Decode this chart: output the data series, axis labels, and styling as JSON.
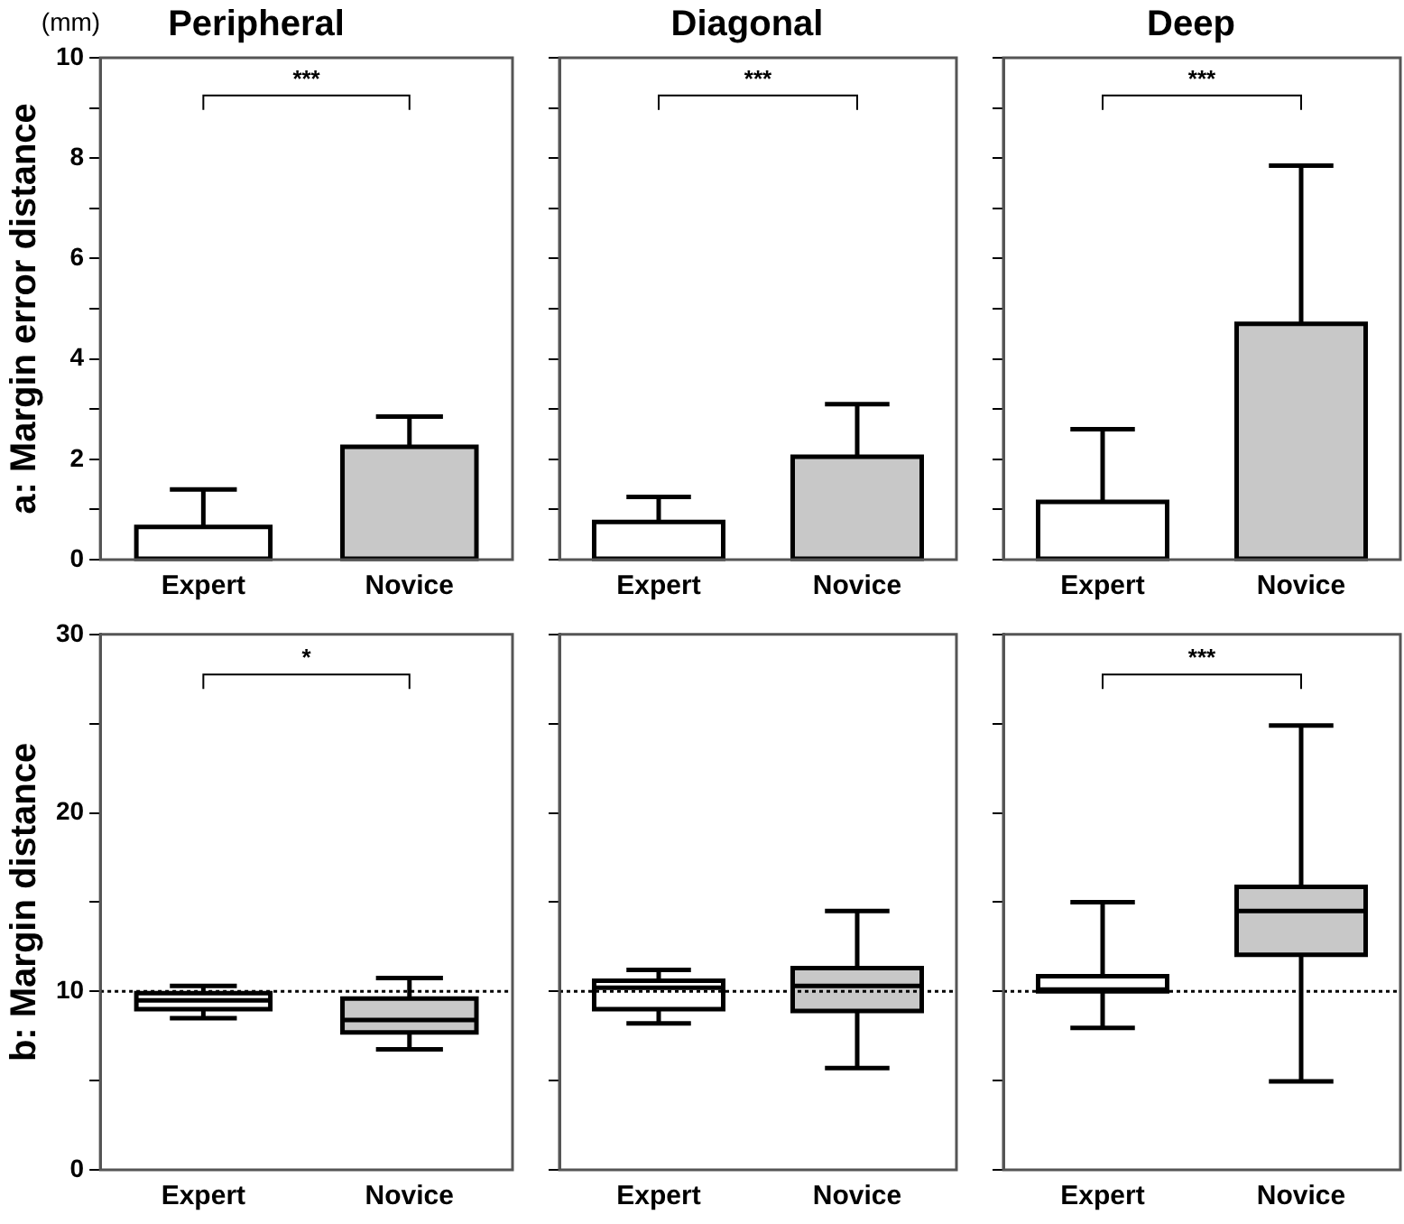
{
  "chart_data": [
    {
      "type": "bar",
      "title": "Peripheral",
      "ylabel": "a: Margin error distance",
      "annotations": [
        "(mm)",
        "***"
      ],
      "categories": [
        "Expert",
        "Novice"
      ],
      "values": [
        0.65,
        2.25
      ],
      "errors": [
        [
          0.65,
          1.4
        ],
        [
          2.25,
          2.85
        ]
      ],
      "colors": [
        "#ffffff",
        "#c8c8c8"
      ],
      "ylim": [
        0,
        10
      ],
      "yticks": [
        0,
        {
          "value": 1,
          "label": null
        },
        2,
        {
          "value": 3,
          "label": null
        },
        4,
        {
          "value": 5,
          "label": null
        },
        6,
        {
          "value": 7,
          "label": null
        },
        8,
        {
          "value": 9,
          "label": null
        },
        10
      ],
      "grid": false
    },
    {
      "type": "bar",
      "title": "Diagonal",
      "annotations": [
        "***"
      ],
      "categories": [
        "Expert",
        "Novice"
      ],
      "values": [
        0.75,
        2.05
      ],
      "errors": [
        [
          0.75,
          1.25
        ],
        [
          2.05,
          3.1
        ]
      ],
      "colors": [
        "#ffffff",
        "#c8c8c8"
      ],
      "ylim": [
        0,
        10
      ],
      "yticks": [
        0,
        {
          "value": 1,
          "label": null
        },
        2,
        {
          "value": 3,
          "label": null
        },
        4,
        {
          "value": 5,
          "label": null
        },
        6,
        {
          "value": 7,
          "label": null
        },
        8,
        {
          "value": 9,
          "label": null
        },
        10
      ],
      "tick_labels": "x",
      "grid": false
    },
    {
      "type": "bar",
      "title": "Deep",
      "annotations": [
        "***"
      ],
      "categories": [
        "Expert",
        "Novice"
      ],
      "values": [
        1.15,
        4.7
      ],
      "errors": [
        [
          1.15,
          2.6
        ],
        [
          4.7,
          7.85
        ]
      ],
      "colors": [
        "#ffffff",
        "#c8c8c8"
      ],
      "ylim": [
        0,
        10
      ],
      "yticks": [
        0,
        {
          "value": 1,
          "label": null
        },
        2,
        {
          "value": 3,
          "label": null
        },
        4,
        {
          "value": 5,
          "label": null
        },
        6,
        {
          "value": 7,
          "label": null
        },
        8,
        {
          "value": 9,
          "label": null
        },
        10
      ],
      "tick_labels": "x",
      "grid": false
    },
    {
      "type": "box",
      "ylabel": "b: Margin distance",
      "annotations": [
        "*"
      ],
      "categories": [
        "Expert",
        "Novice"
      ],
      "boxes": [
        {
          "low": 8.5,
          "q1": 9.0,
          "median": 9.5,
          "q3": 9.9,
          "high": 10.3
        },
        {
          "low": 6.75,
          "q1": 7.7,
          "median": 8.4,
          "q3": 9.6,
          "high": 10.75
        }
      ],
      "colors": [
        "#ffffff",
        "#c8c8c8"
      ],
      "ylim": [
        0,
        30
      ],
      "yticks": [
        0,
        {
          "value": 5,
          "label": null
        },
        10,
        {
          "value": 15,
          "label": null
        },
        20,
        {
          "value": 25,
          "label": null
        },
        30
      ],
      "ref_lines": [
        {
          "axis": "y",
          "value": 10,
          "line_style": "dotted",
          "color": "#000000"
        }
      ],
      "grid": false
    },
    {
      "type": "box",
      "categories": [
        "Expert",
        "Novice"
      ],
      "boxes": [
        {
          "low": 8.2,
          "q1": 9.0,
          "median": 10.2,
          "q3": 10.6,
          "high": 11.2
        },
        {
          "low": 5.7,
          "q1": 8.9,
          "median": 10.3,
          "q3": 11.3,
          "high": 14.5
        }
      ],
      "colors": [
        "#ffffff",
        "#c8c8c8"
      ],
      "ylim": [
        0,
        30
      ],
      "yticks": [
        0,
        {
          "value": 5,
          "label": null
        },
        10,
        {
          "value": 15,
          "label": null
        },
        20,
        {
          "value": 25,
          "label": null
        },
        30
      ],
      "ref_lines": [
        {
          "axis": "y",
          "value": 10,
          "line_style": "dotted",
          "color": "#000000"
        }
      ],
      "tick_labels": "x",
      "grid": false
    },
    {
      "type": "box",
      "annotations": [
        "***"
      ],
      "categories": [
        "Expert",
        "Novice"
      ],
      "boxes": [
        {
          "low": 7.95,
          "q1": 10.0,
          "median": 10.1,
          "q3": 10.85,
          "high": 15.0
        },
        {
          "low": 4.95,
          "q1": 12.05,
          "median": 14.5,
          "q3": 15.85,
          "high": 24.9
        }
      ],
      "colors": [
        "#ffffff",
        "#c8c8c8"
      ],
      "ylim": [
        0,
        30
      ],
      "yticks": [
        0,
        {
          "value": 5,
          "label": null
        },
        10,
        {
          "value": 15,
          "label": null
        },
        20,
        {
          "value": 25,
          "label": null
        },
        30
      ],
      "ref_lines": [
        {
          "axis": "y",
          "value": 10,
          "line_style": "dotted",
          "color": "#000000"
        }
      ],
      "tick_labels": "x",
      "grid": false
    }
  ]
}
